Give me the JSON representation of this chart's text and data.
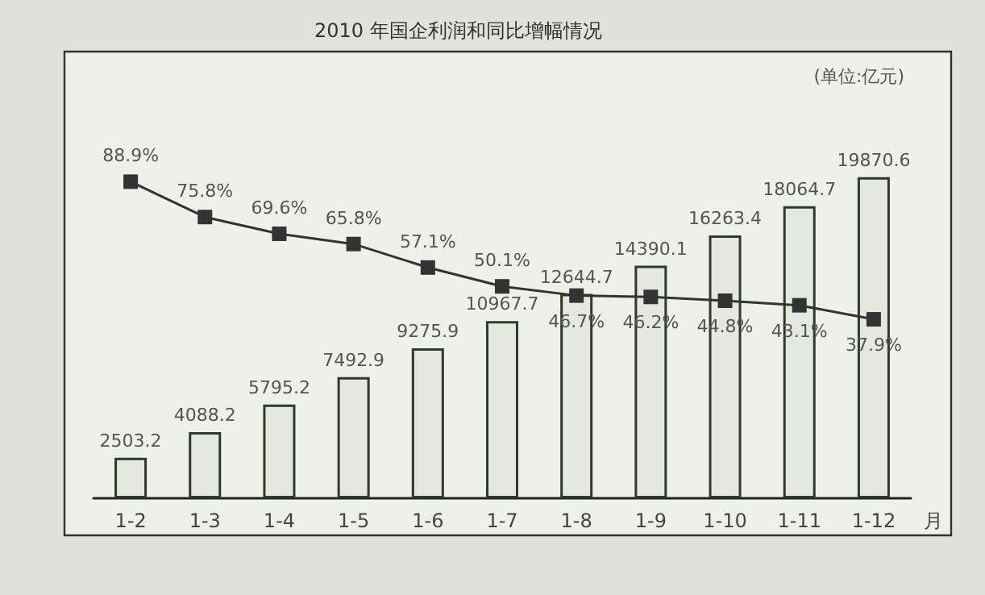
{
  "chart_data": {
    "type": "bar",
    "title": "2010 年国企利润和同比增幅情况",
    "xlabel": "月",
    "annotations": [
      "(单位:亿元)"
    ],
    "categories": [
      "1-2",
      "1-3",
      "1-4",
      "1-5",
      "1-6",
      "1-7",
      "1-8",
      "1-9",
      "1-10",
      "1-11",
      "1-12"
    ],
    "series": [
      {
        "color": "#e4e8e0",
        "values": [
          2503.2,
          4088.2,
          5795.2,
          7492.9,
          9275.9,
          10967.7,
          12644.7,
          14390.1,
          16263.4,
          18064.7,
          19870.6
        ]
      },
      {
        "type": "line",
        "axis": "y2",
        "color": "#333333",
        "marker": "square",
        "values": [
          88.9,
          75.8,
          69.6,
          65.8,
          57.1,
          50.1,
          46.7,
          46.2,
          44.8,
          43.1,
          37.9
        ],
        "value_labels": [
          "88.9%",
          "75.8%",
          "69.6%",
          "65.8%",
          "57.1%",
          "50.1%",
          "46.7%",
          "46.2%",
          "44.8%",
          "43.1%",
          "37.9%"
        ]
      }
    ],
    "data_labels": true,
    "grid": false
  }
}
